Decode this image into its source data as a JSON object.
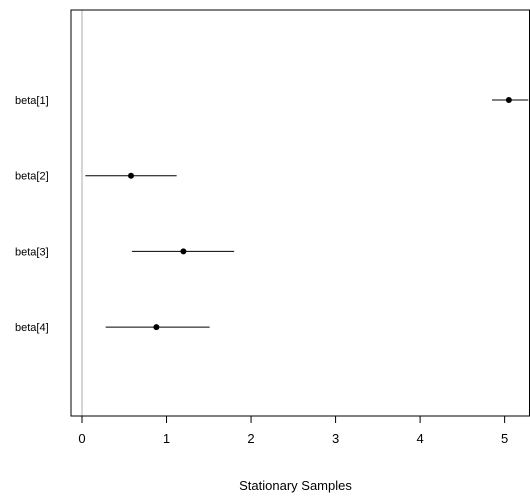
{
  "chart_data": {
    "type": "scatter",
    "title": "",
    "xlabel": "Stationary Samples",
    "ylabel": "",
    "xlim": [
      -0.13,
      5.3
    ],
    "xticks": [
      0,
      1,
      2,
      3,
      4,
      5
    ],
    "xtick_labels": [
      "0",
      "1",
      "2",
      "3",
      "4",
      "5"
    ],
    "reference_line_x": 0,
    "colors": {
      "point": "#000000",
      "interval": "#000000",
      "reference_line": "#c8c8c8",
      "frame": "#000000"
    },
    "series": [
      {
        "label": "beta[1]",
        "estimate": 5.05,
        "lower": 4.85,
        "upper": 5.28
      },
      {
        "label": "beta[2]",
        "estimate": 0.58,
        "lower": 0.04,
        "upper": 1.12
      },
      {
        "label": "beta[3]",
        "estimate": 1.2,
        "lower": 0.59,
        "upper": 1.8
      },
      {
        "label": "beta[4]",
        "estimate": 0.88,
        "lower": 0.28,
        "upper": 1.51
      }
    ]
  }
}
